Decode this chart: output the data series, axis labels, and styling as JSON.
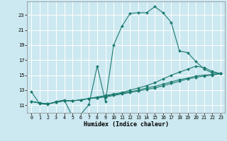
{
  "xlabel": "Humidex (Indice chaleur)",
  "bg_color": "#cce8f0",
  "grid_color": "#ffffff",
  "line_color": "#1a7a6e",
  "xlim": [
    -0.5,
    23.5
  ],
  "ylim": [
    10.0,
    24.8
  ],
  "yticks": [
    11,
    13,
    15,
    17,
    19,
    21,
    23
  ],
  "xticks": [
    0,
    1,
    2,
    3,
    4,
    5,
    6,
    7,
    8,
    9,
    10,
    11,
    12,
    13,
    14,
    15,
    16,
    17,
    18,
    19,
    20,
    21,
    22,
    23
  ],
  "series": [
    {
      "x": [
        0,
        1,
        2,
        3,
        4,
        5,
        6,
        7,
        8,
        9,
        10,
        11,
        12,
        13,
        14,
        15,
        16,
        17,
        18,
        19,
        20,
        21,
        22,
        23
      ],
      "y": [
        12.8,
        11.2,
        11.1,
        11.5,
        11.7,
        9.5,
        9.8,
        11.1,
        16.2,
        11.5,
        19.0,
        21.5,
        23.2,
        23.3,
        23.3,
        24.1,
        23.3,
        22.0,
        18.2,
        18.0,
        16.8,
        15.8,
        15.3,
        15.2
      ]
    },
    {
      "x": [
        0,
        1,
        2,
        3,
        4,
        5,
        6,
        7,
        8,
        9,
        10,
        11,
        12,
        13,
        14,
        15,
        16,
        17,
        18,
        19,
        20,
        21,
        22,
        23
      ],
      "y": [
        11.5,
        11.3,
        11.2,
        11.4,
        11.6,
        11.6,
        11.7,
        11.9,
        12.1,
        12.3,
        12.5,
        12.7,
        13.0,
        13.3,
        13.6,
        14.0,
        14.5,
        15.0,
        15.4,
        15.8,
        16.2,
        16.0,
        15.5,
        15.2
      ]
    },
    {
      "x": [
        0,
        1,
        2,
        3,
        4,
        5,
        6,
        7,
        8,
        9,
        10,
        11,
        12,
        13,
        14,
        15,
        16,
        17,
        18,
        19,
        20,
        21,
        22,
        23
      ],
      "y": [
        11.5,
        11.3,
        11.2,
        11.4,
        11.6,
        11.6,
        11.7,
        11.9,
        12.0,
        12.2,
        12.4,
        12.6,
        12.8,
        13.0,
        13.3,
        13.5,
        13.8,
        14.1,
        14.4,
        14.6,
        14.9,
        15.0,
        15.1,
        15.2
      ]
    },
    {
      "x": [
        0,
        1,
        2,
        3,
        4,
        5,
        6,
        7,
        8,
        9,
        10,
        11,
        12,
        13,
        14,
        15,
        16,
        17,
        18,
        19,
        20,
        21,
        22,
        23
      ],
      "y": [
        11.5,
        11.3,
        11.2,
        11.4,
        11.6,
        11.6,
        11.7,
        11.9,
        12.0,
        12.1,
        12.3,
        12.5,
        12.7,
        12.9,
        13.1,
        13.3,
        13.6,
        13.9,
        14.2,
        14.5,
        14.7,
        14.9,
        15.0,
        15.2
      ]
    }
  ]
}
